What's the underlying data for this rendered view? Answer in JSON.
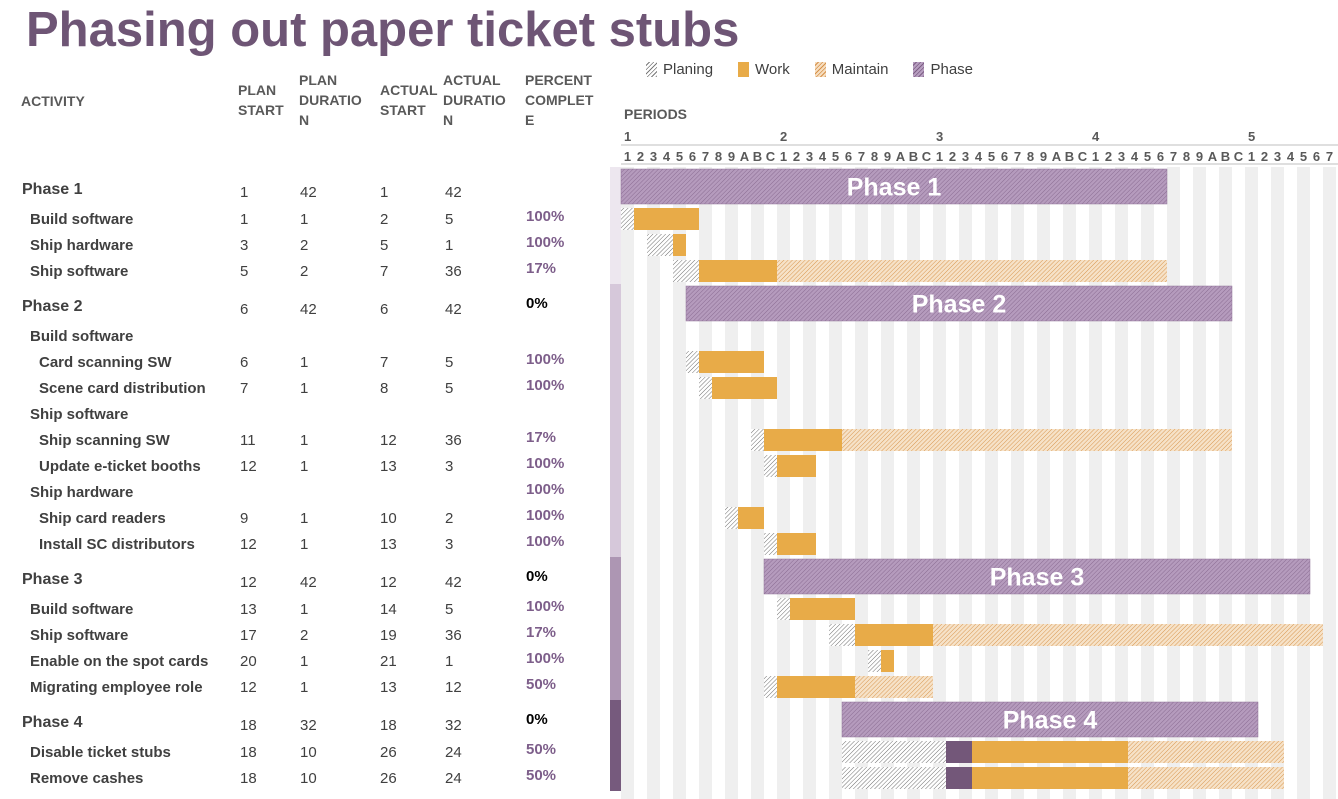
{
  "title": "Phasing out paper ticket stubs",
  "headers": {
    "activity": "ACTIVITY",
    "plan_start": "PLAN\nSTART",
    "plan_duration": "PLAN\nDURATIO\nN",
    "actual_start": "ACTUAL\nSTART",
    "actual_duration": "ACTUAL\nDURATIO\nN",
    "percent_complete": "PERCENT\nCOMPLET\nE"
  },
  "legend": [
    {
      "label": "Planing",
      "kind": "plan"
    },
    {
      "label": "Work",
      "kind": "work"
    },
    {
      "label": "Maintain",
      "kind": "maint"
    },
    {
      "label": "Phase",
      "kind": "phase"
    }
  ],
  "colors": {
    "title": "#6e5575",
    "work": "#e8ab48",
    "phase_fill": "#a88bb1",
    "maintain_fill": "#f3dcbf",
    "grid_light": "#f2f2f2",
    "percent": "#7d5e8a"
  },
  "periods_label": "PERIODS",
  "chart_data": {
    "type": "gantt",
    "period_major_labels": [
      "1",
      "2",
      "3",
      "4",
      "5"
    ],
    "period_minor_labels": [
      "1",
      "2",
      "3",
      "4",
      "5",
      "6",
      "7",
      "8",
      "9",
      "A",
      "B",
      "C",
      "1",
      "2",
      "3",
      "4",
      "5",
      "6",
      "7",
      "8",
      "9",
      "A",
      "B",
      "C",
      "1",
      "2",
      "3",
      "4",
      "5",
      "6",
      "7",
      "8",
      "9",
      "A",
      "B",
      "C",
      "1",
      "2",
      "3",
      "4",
      "5",
      "6",
      "7",
      "8",
      "9",
      "A",
      "B",
      "C",
      "1",
      "2",
      "3",
      "4",
      "5",
      "6",
      "7"
    ],
    "rows": [
      {
        "activity": "Phase 1",
        "level": 0,
        "plan_start": "1",
        "plan_duration": "42",
        "actual_start": "1",
        "actual_duration": "42",
        "percent": "",
        "bar": {
          "type": "phase",
          "start": 1,
          "duration": 42,
          "label": "Phase 1"
        },
        "phase": 1
      },
      {
        "activity": "Build software",
        "level": 1,
        "plan_start": "1",
        "plan_duration": "1",
        "actual_start": "2",
        "actual_duration": "5",
        "percent": "100%",
        "bar": {
          "type": "task",
          "plan_start": 1,
          "plan_duration": 1,
          "actual_start": 2,
          "work_duration": 5,
          "maintain_duration": 0
        },
        "phase": 1
      },
      {
        "activity": "Ship hardware",
        "level": 1,
        "plan_start": "3",
        "plan_duration": "2",
        "actual_start": "5",
        "actual_duration": "1",
        "percent": "100%",
        "bar": {
          "type": "task",
          "plan_start": 3,
          "plan_duration": 2,
          "actual_start": 5,
          "work_duration": 1,
          "maintain_duration": 0
        },
        "phase": 1
      },
      {
        "activity": "Ship software",
        "level": 1,
        "plan_start": "5",
        "plan_duration": "2",
        "actual_start": "7",
        "actual_duration": "36",
        "percent": "17%",
        "bar": {
          "type": "task",
          "plan_start": 5,
          "plan_duration": 2,
          "actual_start": 7,
          "work_duration": 6,
          "maintain_duration": 30
        },
        "phase": 1
      },
      {
        "activity": "Phase 2",
        "level": 0,
        "plan_start": "6",
        "plan_duration": "42",
        "actual_start": "6",
        "actual_duration": "42",
        "percent": "0%",
        "bar": {
          "type": "phase",
          "start": 6,
          "duration": 42,
          "label": "Phase 2"
        },
        "phase": 2
      },
      {
        "activity": "Build software",
        "level": 1,
        "plan_start": "",
        "plan_duration": "",
        "actual_start": "",
        "actual_duration": "",
        "percent": "",
        "bar": null,
        "phase": 2
      },
      {
        "activity": "Card scanning SW",
        "level": 2,
        "plan_start": "6",
        "plan_duration": "1",
        "actual_start": "7",
        "actual_duration": "5",
        "percent": "100%",
        "bar": {
          "type": "task",
          "plan_start": 6,
          "plan_duration": 1,
          "actual_start": 7,
          "work_duration": 5,
          "maintain_duration": 0
        },
        "phase": 2
      },
      {
        "activity": "Scene card distribution",
        "level": 2,
        "plan_start": "7",
        "plan_duration": "1",
        "actual_start": "8",
        "actual_duration": "5",
        "percent": "100%",
        "bar": {
          "type": "task",
          "plan_start": 7,
          "plan_duration": 1,
          "actual_start": 8,
          "work_duration": 5,
          "maintain_duration": 0
        },
        "phase": 2
      },
      {
        "activity": "Ship software",
        "level": 1,
        "plan_start": "",
        "plan_duration": "",
        "actual_start": "",
        "actual_duration": "",
        "percent": "",
        "bar": null,
        "phase": 2
      },
      {
        "activity": "Ship scanning SW",
        "level": 2,
        "plan_start": "11",
        "plan_duration": "1",
        "actual_start": "12",
        "actual_duration": "36",
        "percent": "17%",
        "bar": {
          "type": "task",
          "plan_start": 11,
          "plan_duration": 1,
          "actual_start": 12,
          "work_duration": 6,
          "maintain_duration": 30
        },
        "phase": 2
      },
      {
        "activity": "Update e-ticket booths",
        "level": 2,
        "plan_start": "12",
        "plan_duration": "1",
        "actual_start": "13",
        "actual_duration": "3",
        "percent": "100%",
        "bar": {
          "type": "task",
          "plan_start": 12,
          "plan_duration": 1,
          "actual_start": 13,
          "work_duration": 3,
          "maintain_duration": 0
        },
        "phase": 2
      },
      {
        "activity": "Ship hardware",
        "level": 1,
        "plan_start": "",
        "plan_duration": "",
        "actual_start": "",
        "actual_duration": "",
        "percent": "100%",
        "bar": null,
        "phase": 2
      },
      {
        "activity": "Ship card readers",
        "level": 2,
        "plan_start": "9",
        "plan_duration": "1",
        "actual_start": "10",
        "actual_duration": "2",
        "percent": "100%",
        "bar": {
          "type": "task",
          "plan_start": 9,
          "plan_duration": 1,
          "actual_start": 10,
          "work_duration": 2,
          "maintain_duration": 0
        },
        "phase": 2
      },
      {
        "activity": "Install SC distributors",
        "level": 2,
        "plan_start": "12",
        "plan_duration": "1",
        "actual_start": "13",
        "actual_duration": "3",
        "percent": "100%",
        "bar": {
          "type": "task",
          "plan_start": 12,
          "plan_duration": 1,
          "actual_start": 13,
          "work_duration": 3,
          "maintain_duration": 0
        },
        "phase": 2
      },
      {
        "activity": "Phase 3",
        "level": 0,
        "plan_start": "12",
        "plan_duration": "42",
        "actual_start": "12",
        "actual_duration": "42",
        "percent": "0%",
        "bar": {
          "type": "phase",
          "start": 12,
          "duration": 42,
          "label": "Phase 3"
        },
        "phase": 3
      },
      {
        "activity": "Build software",
        "level": 1,
        "plan_start": "13",
        "plan_duration": "1",
        "actual_start": "14",
        "actual_duration": "5",
        "percent": "100%",
        "bar": {
          "type": "task",
          "plan_start": 13,
          "plan_duration": 1,
          "actual_start": 14,
          "work_duration": 5,
          "maintain_duration": 0
        },
        "phase": 3
      },
      {
        "activity": "Ship software",
        "level": 1,
        "plan_start": "17",
        "plan_duration": "2",
        "actual_start": "19",
        "actual_duration": "36",
        "percent": "17%",
        "bar": {
          "type": "task",
          "plan_start": 17,
          "plan_duration": 2,
          "actual_start": 19,
          "work_duration": 6,
          "maintain_duration": 30
        },
        "phase": 3
      },
      {
        "activity": "Enable on the spot cards",
        "level": 1,
        "plan_start": "20",
        "plan_duration": "1",
        "actual_start": "21",
        "actual_duration": "1",
        "percent": "100%",
        "bar": {
          "type": "task",
          "plan_start": 20,
          "plan_duration": 1,
          "actual_start": 21,
          "work_duration": 1,
          "maintain_duration": 0
        },
        "phase": 3
      },
      {
        "activity": "Migrating employee role",
        "level": 1,
        "plan_start": "12",
        "plan_duration": "1",
        "actual_start": "13",
        "actual_duration": "12",
        "percent": "50%",
        "bar": {
          "type": "task",
          "plan_start": 12,
          "plan_duration": 1,
          "actual_start": 13,
          "work_duration": 6,
          "maintain_duration": 6
        },
        "phase": 3
      },
      {
        "activity": "Phase 4",
        "level": 0,
        "plan_start": "18",
        "plan_duration": "32",
        "actual_start": "18",
        "actual_duration": "32",
        "percent": "0%",
        "bar": {
          "type": "phase",
          "start": 18,
          "duration": 32,
          "label": "Phase 4"
        },
        "phase": 4
      },
      {
        "activity": "Disable ticket stubs",
        "level": 1,
        "plan_start": "18",
        "plan_duration": "10",
        "actual_start": "26",
        "actual_duration": "24",
        "percent": "50%",
        "bar": {
          "type": "task",
          "plan_start": 18,
          "plan_duration": 10,
          "actual_start": 26,
          "work_duration": 12,
          "maintain_duration": 12,
          "delay_start": 26,
          "delay_duration": 2
        },
        "phase": 4
      },
      {
        "activity": "Remove cashes",
        "level": 1,
        "plan_start": "18",
        "plan_duration": "10",
        "actual_start": "26",
        "actual_duration": "24",
        "percent": "50%",
        "bar": {
          "type": "task",
          "plan_start": 18,
          "plan_duration": 10,
          "actual_start": 26,
          "work_duration": 12,
          "maintain_duration": 12,
          "delay_start": 26,
          "delay_duration": 2
        },
        "phase": 4
      }
    ]
  }
}
